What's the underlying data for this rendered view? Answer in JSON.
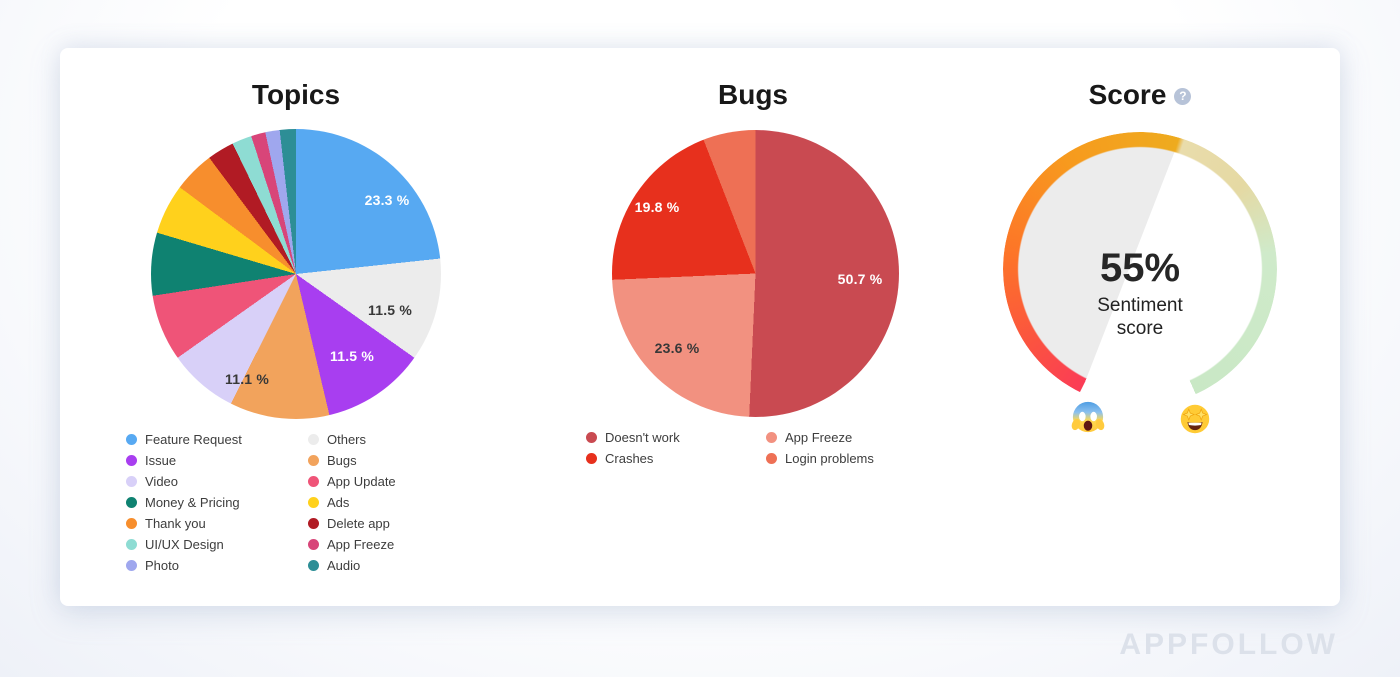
{
  "page": {
    "watermark": "APPFOLLOW"
  },
  "chart_data": [
    {
      "id": "topics",
      "type": "pie",
      "title": "Topics",
      "legend_position": "bottom",
      "legend_rows": 7,
      "series": [
        {
          "label": "Feature Request",
          "value": 23.3,
          "color": "#57a9f2"
        },
        {
          "label": "Others",
          "value": 11.5,
          "color": "#ececec"
        },
        {
          "label": "Issue",
          "value": 11.5,
          "color": "#a83ef0"
        },
        {
          "label": "Bugs",
          "value": 11.1,
          "color": "#f2a35c"
        },
        {
          "label": "Video",
          "value": 7.8,
          "color": "#d8d0f8"
        },
        {
          "label": "App Update",
          "value": 7.4,
          "color": "#ef5478"
        },
        {
          "label": "Money & Pricing",
          "value": 7.0,
          "color": "#0f8271"
        },
        {
          "label": "Ads",
          "value": 5.6,
          "color": "#ffd11c"
        },
        {
          "label": "Thank you",
          "value": 4.6,
          "color": "#f78e2d"
        },
        {
          "label": "Delete app",
          "value": 3.0,
          "color": "#b11b24"
        },
        {
          "label": "UI/UX Design",
          "value": 2.2,
          "color": "#8edcd3"
        },
        {
          "label": "App Freeze",
          "value": 1.6,
          "color": "#d84579"
        },
        {
          "label": "Photo",
          "value": 1.6,
          "color": "#9fa7ee"
        },
        {
          "label": "Audio",
          "value": 1.8,
          "color": "#2d8e96"
        }
      ],
      "slice_labels": [
        {
          "text": "23.3 %",
          "x": 236,
          "y": 71,
          "color": "#ffffff"
        },
        {
          "text": "11.5 %",
          "x": 239,
          "y": 181,
          "color": "#383838"
        },
        {
          "text": "11.5 %",
          "x": 201,
          "y": 227,
          "color": "#ffffff"
        },
        {
          "text": "11.1 %",
          "x": 96,
          "y": 250,
          "color": "#383838"
        }
      ],
      "legend_items": [
        {
          "label": "Feature Request",
          "color": "#57a9f2"
        },
        {
          "label": "Issue",
          "color": "#a83ef0"
        },
        {
          "label": "Video",
          "color": "#d8d0f8"
        },
        {
          "label": "Money & Pricing",
          "color": "#0f8271"
        },
        {
          "label": "Thank you",
          "color": "#f78e2d"
        },
        {
          "label": "UI/UX Design",
          "color": "#8edcd3"
        },
        {
          "label": "Photo",
          "color": "#9fa7ee"
        },
        {
          "label": "Others",
          "color": "#ececec"
        },
        {
          "label": "Bugs",
          "color": "#f2a35c"
        },
        {
          "label": "App Update",
          "color": "#ef5478"
        },
        {
          "label": "Ads",
          "color": "#ffd11c"
        },
        {
          "label": "Delete app",
          "color": "#b11b24"
        },
        {
          "label": "App Freeze",
          "color": "#d84579"
        },
        {
          "label": "Audio",
          "color": "#2d8e96"
        }
      ]
    },
    {
      "id": "bugs",
      "type": "pie",
      "title": "Bugs",
      "legend_position": "bottom",
      "legend_rows": 2,
      "series": [
        {
          "label": "Doesn't work",
          "value": 50.7,
          "color": "#c94a51"
        },
        {
          "label": "App Freeze",
          "value": 23.6,
          "color": "#f29180"
        },
        {
          "label": "Crashes",
          "value": 19.8,
          "color": "#e7301d"
        },
        {
          "label": "Login problems",
          "value": 5.9,
          "color": "#ee7055"
        }
      ],
      "slice_labels": [
        {
          "text": "50.7 %",
          "x": 248,
          "y": 149,
          "color": "#ffffff"
        },
        {
          "text": "19.8 %",
          "x": 45,
          "y": 77,
          "color": "#ffffff"
        },
        {
          "text": "23.6 %",
          "x": 65,
          "y": 218,
          "color": "#383838"
        }
      ],
      "legend_items": [
        {
          "label": "Doesn't work",
          "color": "#c94a51"
        },
        {
          "label": "Crashes",
          "color": "#e7301d"
        },
        {
          "label": "App Freeze",
          "color": "#f29180"
        },
        {
          "label": "Login problems",
          "color": "#ee7055"
        }
      ]
    },
    {
      "id": "score",
      "type": "gauge",
      "title": "Score",
      "help": "?",
      "value_pct": 55,
      "value_text": "55%",
      "label": "Sentiment score",
      "arc": {
        "start_deg": 206,
        "sweep_deg": 310,
        "filled_stops": [
          [
            "#fb3c56",
            0
          ],
          [
            "#fb5340",
            30
          ],
          [
            "#fd7428",
            70
          ],
          [
            "#f79a1e",
            120
          ],
          [
            "#eeab1e",
            170.5
          ]
        ],
        "unfilled_stops": [
          [
            "#e9dcab",
            173
          ],
          [
            "#e5d9a3",
            205
          ],
          [
            "#cfeaca",
            237
          ],
          [
            "#c9e8c5",
            310
          ]
        ],
        "wedge_color": "#ececec"
      },
      "emoji_low": "screaming-face",
      "emoji_high": "star-struck"
    }
  ]
}
